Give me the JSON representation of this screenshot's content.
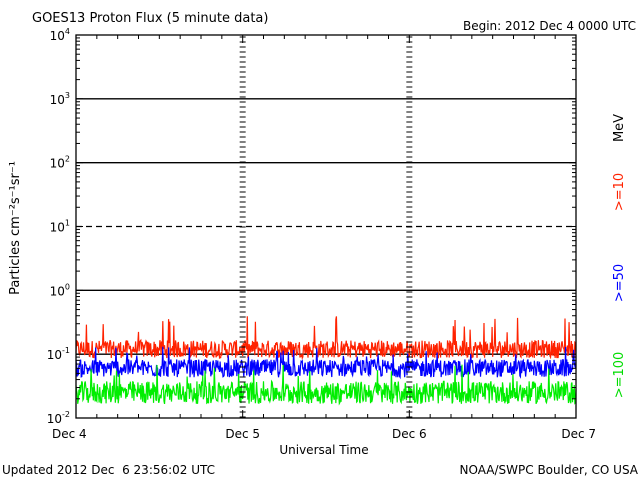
{
  "chart_data": {
    "type": "line",
    "title": "GOES13 Proton Flux (5 minute data)",
    "begin_label": "Begin: 2012 Dec 4 0000 UTC",
    "xlabel": "Universal Time",
    "ylabel": "Particles cm⁻²s⁻¹sr⁻¹",
    "y_scale": "log",
    "ylim": [
      0.01,
      10000
    ],
    "y_ticks": [
      {
        "base": "10",
        "exp": "4",
        "value": 10000
      },
      {
        "base": "10",
        "exp": "3",
        "value": 1000
      },
      {
        "base": "10",
        "exp": "2",
        "value": 100
      },
      {
        "base": "10",
        "exp": "1",
        "value": 10
      },
      {
        "base": "10",
        "exp": "0",
        "value": 1
      },
      {
        "base": "10",
        "exp": "-1",
        "value": 0.1
      },
      {
        "base": "10",
        "exp": "-2",
        "value": 0.01
      }
    ],
    "x_ticks": [
      "Dec 4",
      "Dec 5",
      "Dec 6",
      "Dec 7"
    ],
    "xlim_days": [
      0,
      3
    ],
    "threshold_lines": [
      {
        "value": 1000,
        "style": "solid"
      },
      {
        "value": 100,
        "style": "solid"
      },
      {
        "value": 10,
        "style": "dashed"
      },
      {
        "value": 1,
        "style": "solid"
      },
      {
        "value": 0.1,
        "style": "solid"
      }
    ],
    "series": [
      {
        "name": ">=10",
        "color": "#ff2200",
        "typical": 0.12,
        "min": 0.08,
        "max": 0.4
      },
      {
        "name": ">=50",
        "color": "#0000ff",
        "typical": 0.06,
        "min": 0.04,
        "max": 0.14
      },
      {
        "name": ">=100",
        "color": "#00ee00",
        "typical": 0.025,
        "min": 0.015,
        "max": 0.07
      }
    ],
    "legend_unit": "MeV"
  },
  "footer": {
    "updated": "Updated 2012 Dec  6 23:56:02 UTC",
    "credit": "NOAA/SWPC Boulder, CO USA"
  }
}
